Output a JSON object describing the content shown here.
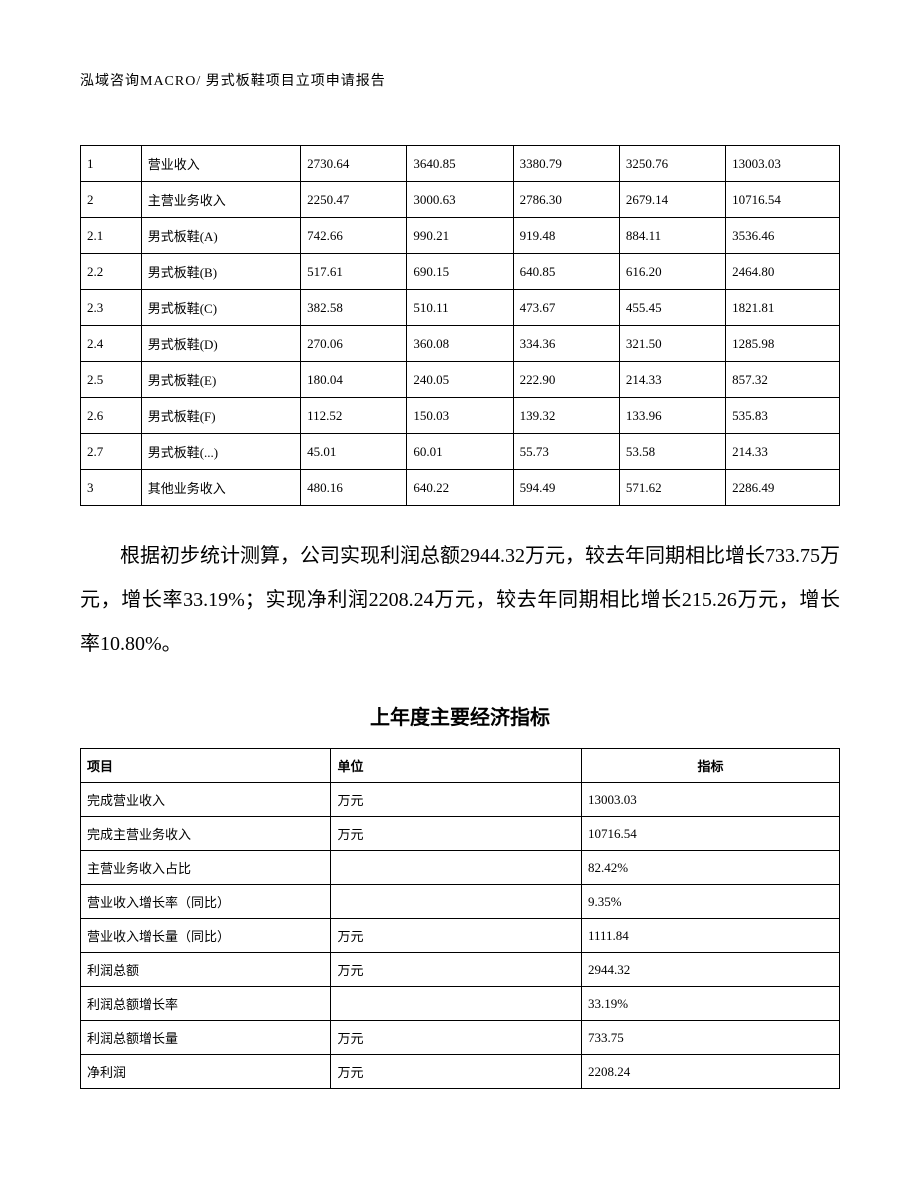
{
  "header": "泓域咨询MACRO/    男式板鞋项目立项申请报告",
  "table1": {
    "rows": [
      [
        "1",
        "营业收入",
        "2730.64",
        "3640.85",
        "3380.79",
        "3250.76",
        "13003.03"
      ],
      [
        "2",
        "主营业务收入",
        "2250.47",
        "3000.63",
        "2786.30",
        "2679.14",
        "10716.54"
      ],
      [
        "2.1",
        "男式板鞋(A)",
        "742.66",
        "990.21",
        "919.48",
        "884.11",
        "3536.46"
      ],
      [
        "2.2",
        "男式板鞋(B)",
        "517.61",
        "690.15",
        "640.85",
        "616.20",
        "2464.80"
      ],
      [
        "2.3",
        "男式板鞋(C)",
        "382.58",
        "510.11",
        "473.67",
        "455.45",
        "1821.81"
      ],
      [
        "2.4",
        "男式板鞋(D)",
        "270.06",
        "360.08",
        "334.36",
        "321.50",
        "1285.98"
      ],
      [
        "2.5",
        "男式板鞋(E)",
        "180.04",
        "240.05",
        "222.90",
        "214.33",
        "857.32"
      ],
      [
        "2.6",
        "男式板鞋(F)",
        "112.52",
        "150.03",
        "139.32",
        "133.96",
        "535.83"
      ],
      [
        "2.7",
        "男式板鞋(...)",
        "45.01",
        "60.01",
        "55.73",
        "53.58",
        "214.33"
      ],
      [
        "3",
        "其他业务收入",
        "480.16",
        "640.22",
        "594.49",
        "571.62",
        "2286.49"
      ]
    ]
  },
  "paragraph": "根据初步统计测算，公司实现利润总额2944.32万元，较去年同期相比增长733.75万元，增长率33.19%；实现净利润2208.24万元，较去年同期相比增长215.26万元，增长率10.80%。",
  "table2_title": "上年度主要经济指标",
  "table2": {
    "headers": [
      "项目",
      "单位",
      "指标"
    ],
    "rows": [
      [
        "完成营业收入",
        "万元",
        "13003.03"
      ],
      [
        "完成主营业务收入",
        "万元",
        "10716.54"
      ],
      [
        "主营业务收入占比",
        "",
        "82.42%"
      ],
      [
        "营业收入增长率（同比）",
        "",
        "9.35%"
      ],
      [
        "营业收入增长量（同比）",
        "万元",
        "1111.84"
      ],
      [
        "利润总额",
        "万元",
        "2944.32"
      ],
      [
        "利润总额增长率",
        "",
        "33.19%"
      ],
      [
        "利润总额增长量",
        "万元",
        "733.75"
      ],
      [
        "净利润",
        "万元",
        "2208.24"
      ]
    ]
  }
}
